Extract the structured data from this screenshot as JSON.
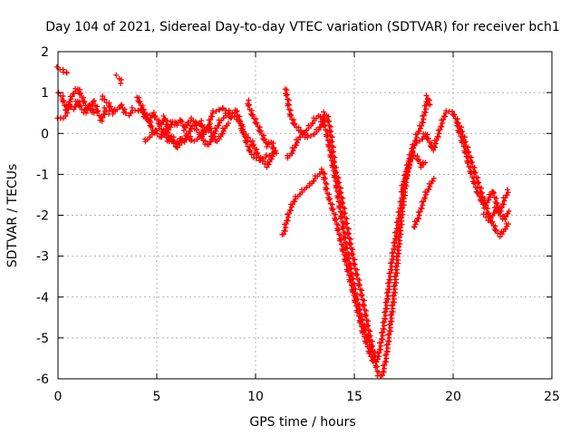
{
  "chart_data": {
    "type": "scatter",
    "title": "Day 104 of 2021, Sidereal Day-to-day VTEC variation (SDTVAR) for receiver bch1",
    "xlabel": "GPS time / hours",
    "ylabel": "SDTVAR / TECUs",
    "xlim": [
      0,
      25
    ],
    "ylim": [
      -6,
      2
    ],
    "xticks": [
      "0",
      "5",
      "10",
      "15",
      "20",
      "25"
    ],
    "yticks": [
      "-6",
      "-5",
      "-4",
      "-3",
      "-2",
      "-1",
      "0",
      "1",
      "2"
    ],
    "grid": true,
    "marker": "plus",
    "color": "#ff0000",
    "series": [
      {
        "values": [
          [
            0.0,
            1.6
          ],
          [
            0.2,
            1.55
          ],
          [
            0.4,
            1.5
          ],
          [
            0.5,
            1.45
          ]
        ]
      },
      {
        "values": [
          [
            0.0,
            1.0
          ],
          [
            0.2,
            0.9
          ],
          [
            0.4,
            0.6
          ],
          [
            0.6,
            0.8
          ],
          [
            0.8,
            1.0
          ],
          [
            1.0,
            1.1
          ],
          [
            1.2,
            0.9
          ],
          [
            1.4,
            0.7
          ],
          [
            1.6,
            0.6
          ],
          [
            1.8,
            0.8
          ],
          [
            2.0,
            0.55
          ],
          [
            2.2,
            0.3
          ],
          [
            2.4,
            0.6
          ],
          [
            2.6,
            0.5
          ]
        ]
      },
      {
        "values": [
          [
            0.0,
            0.4
          ],
          [
            0.2,
            0.35
          ],
          [
            0.4,
            0.45
          ],
          [
            0.6,
            0.7
          ],
          [
            0.8,
            0.6
          ],
          [
            1.0,
            0.8
          ],
          [
            1.2,
            0.6
          ],
          [
            1.4,
            0.5
          ],
          [
            1.6,
            0.7
          ],
          [
            1.8,
            0.5
          ]
        ]
      },
      {
        "values": [
          [
            2.2,
            0.9
          ],
          [
            2.4,
            0.8
          ],
          [
            2.6,
            0.7
          ],
          [
            2.8,
            0.5
          ],
          [
            3.0,
            0.6
          ],
          [
            3.2,
            0.7
          ],
          [
            3.4,
            0.5
          ],
          [
            3.6,
            0.45
          ],
          [
            3.8,
            0.6
          ],
          [
            4.0,
            0.55
          ],
          [
            4.2,
            0.6
          ],
          [
            4.4,
            0.4
          ],
          [
            4.6,
            0.3
          ],
          [
            4.8,
            0.5
          ],
          [
            5.0,
            0.35
          ],
          [
            5.2,
            0.2
          ],
          [
            5.4,
            0.4
          ],
          [
            5.6,
            0.1
          ],
          [
            5.8,
            0.3
          ],
          [
            6.0,
            0.2
          ],
          [
            6.2,
            0.35
          ],
          [
            6.4,
            0.1
          ],
          [
            6.6,
            0.3
          ],
          [
            6.8,
            0.35
          ],
          [
            7.0,
            0.2
          ],
          [
            7.2,
            0.3
          ],
          [
            7.4,
            0.0
          ],
          [
            7.6,
            0.1
          ],
          [
            7.8,
            0.5
          ],
          [
            8.0,
            0.55
          ],
          [
            8.2,
            0.6
          ],
          [
            8.4,
            0.6
          ],
          [
            8.6,
            0.55
          ],
          [
            8.8,
            0.5
          ],
          [
            9.0,
            0.4
          ],
          [
            9.2,
            0.3
          ],
          [
            9.4,
            0.0
          ],
          [
            9.6,
            -0.1
          ],
          [
            9.8,
            -0.2
          ],
          [
            10.0,
            -0.4
          ],
          [
            10.2,
            -0.6
          ],
          [
            10.4,
            -0.7
          ],
          [
            10.6,
            -0.8
          ],
          [
            10.8,
            -0.6
          ],
          [
            11.0,
            -0.4
          ]
        ]
      },
      {
        "values": [
          [
            4.0,
            0.9
          ],
          [
            4.2,
            0.7
          ],
          [
            4.4,
            0.5
          ],
          [
            4.6,
            0.3
          ],
          [
            4.8,
            0.1
          ],
          [
            5.0,
            0.0
          ],
          [
            5.2,
            -0.1
          ],
          [
            5.4,
            0.1
          ],
          [
            5.6,
            0.0
          ],
          [
            5.8,
            -0.2
          ],
          [
            6.0,
            -0.3
          ],
          [
            6.2,
            -0.1
          ],
          [
            6.4,
            -0.2
          ],
          [
            6.6,
            0.0
          ],
          [
            6.8,
            0.2
          ],
          [
            7.0,
            0.1
          ],
          [
            7.2,
            0.0
          ],
          [
            7.4,
            -0.2
          ],
          [
            7.6,
            -0.3
          ],
          [
            7.8,
            -0.1
          ],
          [
            8.0,
            0.1
          ],
          [
            8.2,
            0.3
          ],
          [
            8.4,
            0.4
          ],
          [
            8.6,
            0.5
          ],
          [
            8.8,
            0.35
          ]
        ]
      },
      {
        "values": [
          [
            3.0,
            1.4
          ],
          [
            3.1,
            1.35
          ],
          [
            3.2,
            1.25
          ]
        ]
      },
      {
        "values": [
          [
            4.4,
            -0.2
          ],
          [
            4.6,
            -0.1
          ],
          [
            4.8,
            0.0
          ],
          [
            5.0,
            0.1
          ],
          [
            5.2,
            0.15
          ],
          [
            5.4,
            0.0
          ],
          [
            5.6,
            -0.2
          ],
          [
            5.8,
            -0.1
          ],
          [
            6.0,
            -0.35
          ],
          [
            6.2,
            -0.25
          ],
          [
            6.4,
            -0.15
          ],
          [
            6.6,
            -0.05
          ],
          [
            6.8,
            -0.2
          ],
          [
            7.0,
            -0.15
          ],
          [
            7.2,
            -0.05
          ],
          [
            7.4,
            0.1
          ],
          [
            7.6,
            0.2
          ],
          [
            7.8,
            0.0
          ],
          [
            8.0,
            -0.2
          ],
          [
            8.2,
            -0.1
          ],
          [
            8.4,
            0.1
          ],
          [
            8.6,
            0.25
          ]
        ]
      },
      {
        "values": [
          [
            9.0,
            0.6
          ],
          [
            9.2,
            0.3
          ],
          [
            9.4,
            0.0
          ],
          [
            9.6,
            -0.3
          ],
          [
            9.8,
            -0.5
          ],
          [
            10.0,
            -0.6
          ],
          [
            10.2,
            -0.65
          ],
          [
            10.4,
            -0.6
          ],
          [
            10.6,
            -0.55
          ],
          [
            10.8,
            -0.5
          ]
        ]
      },
      {
        "values": [
          [
            9.6,
            0.8
          ],
          [
            9.7,
            0.6
          ],
          [
            9.8,
            0.5
          ],
          [
            10.0,
            0.3
          ],
          [
            10.2,
            0.1
          ],
          [
            10.4,
            -0.1
          ],
          [
            10.6,
            -0.3
          ],
          [
            10.8,
            -0.2
          ],
          [
            11.0,
            -0.5
          ]
        ]
      },
      {
        "values": [
          [
            11.5,
            1.1
          ],
          [
            11.6,
            0.9
          ],
          [
            11.7,
            0.6
          ],
          [
            11.8,
            0.4
          ],
          [
            12.0,
            0.2
          ],
          [
            12.2,
            0.1
          ],
          [
            12.4,
            0.0
          ],
          [
            12.6,
            -0.1
          ],
          [
            12.8,
            -0.05
          ],
          [
            13.0,
            0.0
          ],
          [
            13.2,
            0.1
          ],
          [
            13.4,
            0.3
          ],
          [
            13.5,
            0.5
          ],
          [
            13.6,
            0.45
          ],
          [
            13.7,
            0.3
          ],
          [
            13.8,
            0.0
          ],
          [
            13.9,
            -0.4
          ],
          [
            14.0,
            -0.8
          ],
          [
            14.2,
            -1.2
          ],
          [
            14.4,
            -1.7
          ],
          [
            14.6,
            -2.2
          ],
          [
            14.8,
            -2.7
          ],
          [
            15.0,
            -3.2
          ],
          [
            15.2,
            -3.6
          ],
          [
            15.4,
            -4.0
          ],
          [
            15.6,
            -4.5
          ],
          [
            15.8,
            -5.0
          ],
          [
            16.0,
            -5.4
          ],
          [
            16.2,
            -5.9
          ],
          [
            16.4,
            -5.95
          ],
          [
            16.6,
            -5.5
          ],
          [
            16.8,
            -4.8
          ],
          [
            17.0,
            -4.0
          ],
          [
            17.2,
            -3.0
          ],
          [
            17.4,
            -2.0
          ],
          [
            17.6,
            -1.2
          ],
          [
            17.8,
            -0.7
          ],
          [
            18.0,
            -0.3
          ],
          [
            18.2,
            -0.2
          ],
          [
            18.4,
            -0.15
          ],
          [
            18.6,
            0.0
          ],
          [
            18.8,
            -0.2
          ],
          [
            19.0,
            -0.4
          ],
          [
            19.2,
            -0.1
          ],
          [
            19.4,
            0.2
          ],
          [
            19.6,
            0.5
          ],
          [
            19.8,
            0.55
          ],
          [
            20.0,
            0.5
          ],
          [
            20.2,
            0.3
          ],
          [
            20.4,
            0.1
          ],
          [
            20.6,
            -0.2
          ],
          [
            20.8,
            -0.5
          ],
          [
            21.0,
            -0.8
          ],
          [
            21.2,
            -1.1
          ],
          [
            21.4,
            -1.4
          ],
          [
            21.6,
            -1.7
          ],
          [
            21.8,
            -2.0
          ],
          [
            22.0,
            -2.2
          ],
          [
            22.2,
            -2.4
          ],
          [
            22.4,
            -2.5
          ],
          [
            22.6,
            -2.35
          ],
          [
            22.8,
            -2.2
          ]
        ]
      },
      {
        "values": [
          [
            11.4,
            -2.5
          ],
          [
            11.6,
            -2.1
          ],
          [
            11.8,
            -1.8
          ],
          [
            12.0,
            -1.6
          ],
          [
            12.2,
            -1.5
          ],
          [
            12.4,
            -1.4
          ],
          [
            12.6,
            -1.3
          ],
          [
            12.8,
            -1.25
          ],
          [
            13.0,
            -1.1
          ],
          [
            13.2,
            -1.0
          ],
          [
            13.4,
            -0.9
          ],
          [
            13.5,
            -1.1
          ],
          [
            13.6,
            -1.4
          ],
          [
            13.8,
            -1.7
          ],
          [
            14.0,
            -2.0
          ],
          [
            14.2,
            -2.4
          ],
          [
            14.4,
            -2.8
          ],
          [
            14.6,
            -3.2
          ],
          [
            14.8,
            -3.6
          ],
          [
            15.0,
            -4.0
          ],
          [
            15.2,
            -4.4
          ],
          [
            15.4,
            -4.8
          ],
          [
            15.6,
            -5.1
          ],
          [
            15.8,
            -5.4
          ],
          [
            16.0,
            -5.6
          ],
          [
            16.2,
            -5.5
          ],
          [
            16.4,
            -5.0
          ],
          [
            16.6,
            -4.3
          ],
          [
            16.8,
            -3.5
          ],
          [
            17.0,
            -2.8
          ],
          [
            17.2,
            -2.2
          ],
          [
            17.4,
            -1.6
          ],
          [
            17.6,
            -1.1
          ],
          [
            17.8,
            -0.7
          ],
          [
            18.0,
            -0.5
          ],
          [
            18.2,
            -0.6
          ],
          [
            18.4,
            -0.8
          ],
          [
            18.6,
            -0.7
          ]
        ]
      },
      {
        "values": [
          [
            11.6,
            -0.6
          ],
          [
            11.8,
            -0.5
          ],
          [
            12.0,
            -0.3
          ],
          [
            12.2,
            -0.1
          ],
          [
            12.4,
            0.0
          ],
          [
            12.6,
            0.1
          ],
          [
            12.8,
            0.2
          ],
          [
            13.0,
            0.35
          ],
          [
            13.2,
            0.45
          ],
          [
            13.4,
            0.35
          ],
          [
            13.6,
            0.0
          ],
          [
            13.8,
            -0.5
          ],
          [
            14.0,
            -1.0
          ],
          [
            14.2,
            -1.6
          ],
          [
            14.4,
            -2.2
          ],
          [
            14.6,
            -2.8
          ],
          [
            14.8,
            -3.3
          ],
          [
            15.0,
            -3.8
          ],
          [
            15.2,
            -4.2
          ],
          [
            15.4,
            -4.6
          ],
          [
            15.6,
            -4.9
          ],
          [
            15.8,
            -5.2
          ],
          [
            16.0,
            -5.5
          ]
        ]
      },
      {
        "values": [
          [
            17.4,
            -1.4
          ],
          [
            17.6,
            -1.0
          ],
          [
            17.8,
            -0.6
          ],
          [
            18.0,
            -0.3
          ],
          [
            18.2,
            0.0
          ],
          [
            18.4,
            0.2
          ],
          [
            18.6,
            0.6
          ],
          [
            18.7,
            0.9
          ],
          [
            18.8,
            0.7
          ]
        ]
      },
      {
        "values": [
          [
            18.0,
            -2.3
          ],
          [
            18.2,
            -2.1
          ],
          [
            18.4,
            -1.8
          ],
          [
            18.6,
            -1.5
          ],
          [
            18.8,
            -1.3
          ],
          [
            19.0,
            -1.1
          ]
        ]
      },
      {
        "values": [
          [
            20.2,
            0.2
          ],
          [
            20.4,
            -0.1
          ],
          [
            20.6,
            -0.4
          ],
          [
            20.8,
            -0.8
          ],
          [
            21.0,
            -1.1
          ],
          [
            21.2,
            -1.4
          ],
          [
            21.4,
            -1.6
          ],
          [
            21.6,
            -1.8
          ],
          [
            21.8,
            -1.6
          ],
          [
            22.0,
            -1.4
          ],
          [
            22.2,
            -1.7
          ],
          [
            22.4,
            -1.9
          ],
          [
            22.6,
            -1.6
          ],
          [
            22.8,
            -1.4
          ]
        ]
      },
      {
        "values": [
          [
            21.6,
            -2.0
          ],
          [
            21.8,
            -2.1
          ],
          [
            22.0,
            -2.0
          ],
          [
            22.2,
            -1.8
          ],
          [
            22.4,
            -2.0
          ],
          [
            22.6,
            -2.1
          ],
          [
            22.8,
            -1.9
          ]
        ]
      }
    ]
  }
}
